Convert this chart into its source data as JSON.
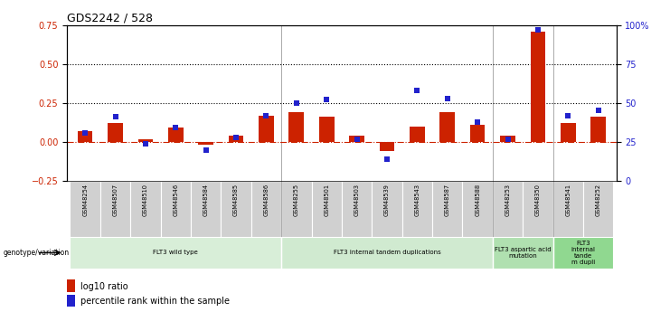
{
  "title": "GDS2242 / 528",
  "samples": [
    "GSM48254",
    "GSM48507",
    "GSM48510",
    "GSM48546",
    "GSM48584",
    "GSM48585",
    "GSM48586",
    "GSM48255",
    "GSM48501",
    "GSM48503",
    "GSM48539",
    "GSM48543",
    "GSM48587",
    "GSM48588",
    "GSM48253",
    "GSM48350",
    "GSM48541",
    "GSM48252"
  ],
  "log10_ratio": [
    0.07,
    0.12,
    0.02,
    0.09,
    -0.02,
    0.04,
    0.17,
    0.19,
    0.16,
    0.04,
    -0.06,
    0.1,
    0.19,
    0.11,
    0.04,
    0.71,
    0.12,
    0.16
  ],
  "percentile_rank": [
    0.31,
    0.41,
    0.24,
    0.34,
    0.2,
    0.28,
    0.42,
    0.5,
    0.52,
    0.27,
    0.14,
    0.58,
    0.53,
    0.38,
    0.27,
    0.97,
    0.42,
    0.45
  ],
  "groups": [
    {
      "label": "FLT3 wild type",
      "start": 0,
      "end": 6,
      "color": "#d8eed8"
    },
    {
      "label": "FLT3 internal tandem duplications",
      "start": 7,
      "end": 13,
      "color": "#d0ead0"
    },
    {
      "label": "FLT3 aspartic acid\nmutation",
      "start": 14,
      "end": 15,
      "color": "#b0e0b0"
    },
    {
      "label": "FLT3\ninternal\ntande\nm dupli",
      "start": 16,
      "end": 17,
      "color": "#90d890"
    }
  ],
  "group_boundaries": [
    6.5,
    13.5,
    15.5
  ],
  "bar_color": "#cc2200",
  "dot_color": "#2222cc",
  "ylim_left": [
    -0.25,
    0.75
  ],
  "ylim_right": [
    0,
    100
  ],
  "yticks_left": [
    -0.25,
    0.0,
    0.25,
    0.5,
    0.75
  ],
  "yticks_right": [
    0,
    25,
    50,
    75,
    100
  ],
  "hline_dotted": [
    0.5,
    0.25
  ],
  "hline_dashed": 0.0,
  "legend_items": [
    {
      "label": "log10 ratio",
      "color": "#cc2200"
    },
    {
      "label": "percentile rank within the sample",
      "color": "#2222cc"
    }
  ],
  "background_color": "#ffffff",
  "cell_color": "#d0d0d0"
}
